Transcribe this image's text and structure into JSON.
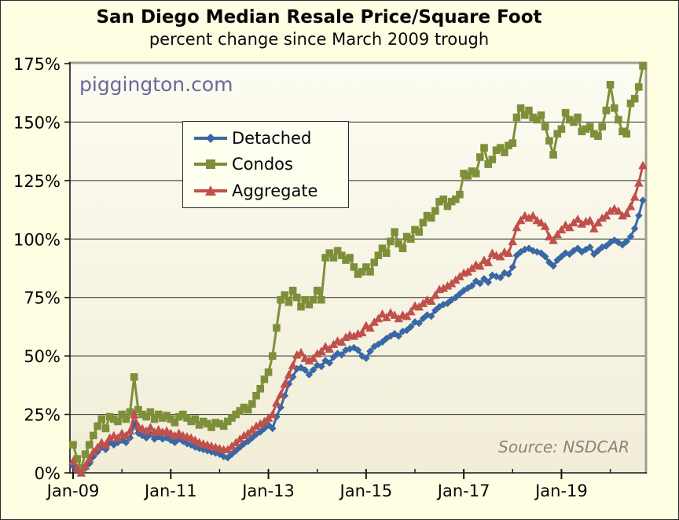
{
  "title": "San Diego Median Resale Price/Square Foot",
  "subtitle": "percent change since March 2009 trough",
  "watermark": "piggington.com",
  "source_note": "Source:  NSDCAR",
  "colors": {
    "detached": "#3a67a5",
    "condos": "#7e8f3a",
    "aggregate": "#c0504b",
    "page_background": "#fffee3",
    "plot_background_top": "#fdfcf2",
    "plot_background_bottom": "#f1edd8",
    "gridline": "#2b2b2b",
    "frame_shadow": "#9e9e94",
    "watermark_color": "#686899",
    "source_color": "#85857c"
  },
  "chart_data": {
    "type": "line",
    "title": "San Diego Median Resale Price/Square Foot",
    "subtitle": "percent change since March 2009 trough",
    "x_unit": "month",
    "x_start": "2009-01",
    "x_end": "2020-09",
    "n_points": 141,
    "x_tick_labels": [
      "Jan-09",
      "Jan-11",
      "Jan-13",
      "Jan-15",
      "Jan-17",
      "Jan-19"
    ],
    "x_minor_ticks": "every January, 2009 through 2020",
    "ylim": [
      0,
      175
    ],
    "y_tick_step": 25,
    "y_tick_labels": [
      "0%",
      "25%",
      "50%",
      "75%",
      "100%",
      "125%",
      "150%",
      "175%"
    ],
    "grid": "horizontal",
    "legend_position": "upper-left-inside",
    "series": [
      {
        "name": "Detached",
        "marker": "diamond",
        "color": "#3a67a5",
        "values": [
          3,
          1,
          0,
          2,
          4,
          7,
          9,
          11,
          10,
          13,
          12,
          13,
          14,
          13,
          15,
          21,
          17,
          16,
          15,
          16.5,
          14.5,
          15.5,
          14.5,
          15,
          14,
          13,
          14.5,
          13.5,
          12.5,
          12,
          11,
          10.5,
          10,
          9.5,
          9,
          8.5,
          8,
          7,
          6.5,
          8,
          9.5,
          11,
          12.5,
          13.5,
          15,
          16.5,
          17.5,
          19,
          20.5,
          19,
          24,
          28,
          33,
          38,
          41,
          44.5,
          45,
          44,
          42,
          44,
          46,
          45.5,
          48,
          47,
          49.5,
          51,
          50.5,
          52.5,
          53,
          53.5,
          52.5,
          50,
          49,
          52,
          54,
          55,
          56,
          57.5,
          58.5,
          59.5,
          58.5,
          60.5,
          61,
          62.5,
          64.5,
          64,
          66,
          67.5,
          67,
          69.5,
          71,
          72,
          72.5,
          74,
          75,
          76.5,
          78,
          79,
          80,
          82,
          81,
          83,
          81.5,
          84.5,
          84,
          83.5,
          85.5,
          85,
          88,
          93,
          94.5,
          95.5,
          96,
          95,
          94.5,
          94,
          92.5,
          90,
          88.5,
          91,
          92.5,
          94,
          93.5,
          95,
          96,
          94.5,
          95.5,
          96.5,
          93.5,
          95,
          96.5,
          97,
          98.5,
          99.5,
          98.5,
          97.5,
          99,
          101,
          104.5,
          110,
          116.5
        ]
      },
      {
        "name": "Condos",
        "marker": "square",
        "color": "#7e8f3a",
        "values": [
          12,
          6,
          2,
          8,
          12,
          16,
          20,
          23,
          19,
          24,
          23,
          22,
          25,
          23,
          26,
          41,
          27,
          25,
          24,
          26,
          23,
          25,
          23.5,
          24.5,
          23,
          21.5,
          24,
          25,
          23.5,
          22,
          23,
          20.5,
          22,
          21,
          19.5,
          21.5,
          21,
          20,
          22,
          23.5,
          25,
          26.5,
          28,
          27,
          29.5,
          33,
          36,
          40,
          43,
          50,
          62,
          74,
          76,
          73,
          78,
          75,
          71,
          74,
          72,
          74,
          78,
          74,
          92,
          94,
          92,
          95,
          93,
          91,
          92,
          88,
          85,
          86,
          88,
          86,
          90,
          93,
          96,
          94,
          99,
          103,
          98,
          96,
          101,
          100,
          104,
          103,
          107,
          110,
          109,
          112,
          116,
          117,
          114,
          116,
          117,
          119,
          128,
          127,
          129,
          128,
          135,
          139,
          132,
          134,
          138,
          139,
          137,
          140,
          141,
          152,
          156,
          153,
          155,
          152,
          151,
          153,
          148,
          142,
          136,
          145,
          147,
          154,
          151,
          150,
          152,
          146,
          147,
          148,
          145,
          144,
          148,
          155,
          166,
          156,
          151,
          146,
          145,
          158,
          160,
          165,
          174
        ]
      },
      {
        "name": "Aggregate",
        "marker": "triangle",
        "color": "#c0504b",
        "values": [
          5,
          2,
          0,
          3,
          6,
          9,
          11,
          13,
          12,
          15,
          16,
          15,
          17,
          16,
          18,
          25,
          20,
          19,
          18,
          19.5,
          17.5,
          18.5,
          17.5,
          18,
          17,
          16,
          17,
          16,
          15.5,
          15,
          14,
          13,
          12.5,
          12,
          11.5,
          11,
          10.5,
          10,
          10,
          11.5,
          13,
          14.5,
          16,
          17,
          18.5,
          20,
          21,
          22,
          23.5,
          25,
          30,
          33.5,
          38,
          42,
          46,
          50.5,
          51.5,
          49,
          48,
          49,
          51,
          52,
          54,
          53,
          55,
          56.5,
          56,
          58,
          59,
          58.5,
          59.5,
          60,
          63,
          62,
          64.5,
          66,
          68,
          66.5,
          68.5,
          67.5,
          66,
          67.5,
          67,
          69,
          71.5,
          71,
          72.5,
          74,
          73.5,
          76,
          78.5,
          79,
          80,
          81,
          82.5,
          84,
          85.5,
          86,
          87.5,
          89,
          88.5,
          91,
          90,
          94,
          93,
          92.5,
          94.5,
          94,
          99,
          105,
          108,
          110,
          109,
          110,
          108,
          107,
          105.5,
          101,
          99.5,
          102,
          104,
          106,
          105,
          107,
          108.5,
          106.5,
          107.5,
          108,
          104.5,
          107,
          109,
          110,
          112,
          113,
          112,
          110,
          111,
          114,
          118,
          124,
          131.5
        ]
      }
    ]
  }
}
